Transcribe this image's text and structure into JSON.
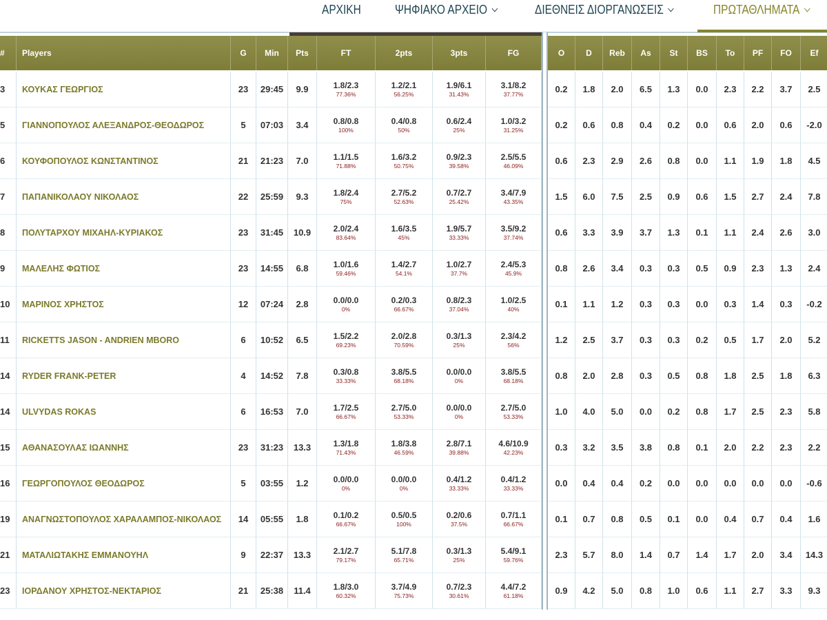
{
  "nav": {
    "items": [
      "ΑΡΧΙΚΗ",
      "ΨΗΦΙΑΚΟ ΑΡΧΕΙΟ",
      "ΔΙΕΘΝΕΙΣ ΔΙΟΡΓΑΝΩΣΕΙΣ",
      "ΠΡΩΤΑΘΛΗΜΑΤΑ"
    ]
  },
  "table": {
    "header": [
      "#",
      "Players",
      "G",
      "Min",
      "Pts",
      "FT",
      "2pts",
      "3pts",
      "FG",
      "O",
      "D",
      "Reb",
      "As",
      "St",
      "BS",
      "To",
      "PF",
      "FO",
      "Ef"
    ],
    "rows": [
      [
        "3",
        "ΚΟΥΚΑΣ ΓΕΩΡΓΙΟΣ",
        "23",
        "29:45",
        "9.9",
        [
          "1.8/2.3",
          "77.36%"
        ],
        [
          "1.2/2.1",
          "56.25%"
        ],
        [
          "1.9/6.1",
          "31.43%"
        ],
        [
          "3.1/8.2",
          "37.77%"
        ],
        "0.2",
        "1.8",
        "2.0",
        "6.5",
        "1.3",
        "0.0",
        "2.3",
        "2.2",
        "3.7",
        "2.5"
      ],
      [
        "5",
        "ΓΙΑΝΝΟΠΟΥΛΟΣ ΑΛΕΞΑΝΔΡΟΣ-ΘΕΟΔΩΡΟΣ",
        "5",
        "07:03",
        "3.4",
        [
          "0.8/0.8",
          "100%"
        ],
        [
          "0.4/0.8",
          "50%"
        ],
        [
          "0.6/2.4",
          "25%"
        ],
        [
          "1.0/3.2",
          "31.25%"
        ],
        "0.2",
        "0.6",
        "0.8",
        "0.4",
        "0.2",
        "0.0",
        "0.6",
        "2.0",
        "0.6",
        "-2.0"
      ],
      [
        "6",
        "ΚΟΥΦΟΠΟΥΛΟΣ ΚΩΝΣΤΑΝΤΙΝΟΣ",
        "21",
        "21:23",
        "7.0",
        [
          "1.1/1.5",
          "71.88%"
        ],
        [
          "1.6/3.2",
          "50.75%"
        ],
        [
          "0.9/2.3",
          "39.58%"
        ],
        [
          "2.5/5.5",
          "46.09%"
        ],
        "0.6",
        "2.3",
        "2.9",
        "2.6",
        "0.8",
        "0.0",
        "1.1",
        "1.9",
        "1.8",
        "4.5"
      ],
      [
        "7",
        "ΠΑΠΑΝΙΚΟΛΑΟΥ ΝΙΚΟΛΑΟΣ",
        "22",
        "25:59",
        "9.3",
        [
          "1.8/2.4",
          "75%"
        ],
        [
          "2.7/5.2",
          "52.63%"
        ],
        [
          "0.7/2.7",
          "25.42%"
        ],
        [
          "3.4/7.9",
          "43.35%"
        ],
        "1.5",
        "6.0",
        "7.5",
        "2.5",
        "0.9",
        "0.6",
        "1.5",
        "2.7",
        "2.4",
        "7.8"
      ],
      [
        "8",
        "ΠΟΛΥΤΑΡΧΟΥ ΜΙΧΑΗΛ-ΚΥΡΙΑΚΟΣ",
        "23",
        "31:45",
        "10.9",
        [
          "2.0/2.4",
          "83.64%"
        ],
        [
          "1.6/3.5",
          "45%"
        ],
        [
          "1.9/5.7",
          "33.33%"
        ],
        [
          "3.5/9.2",
          "37.74%"
        ],
        "0.6",
        "3.3",
        "3.9",
        "3.7",
        "1.3",
        "0.1",
        "1.1",
        "2.4",
        "2.6",
        "3.0"
      ],
      [
        "9",
        "ΜΑΛΕΛΗΣ ΦΩΤΙΟΣ",
        "23",
        "14:55",
        "6.8",
        [
          "1.0/1.6",
          "59.46%"
        ],
        [
          "1.4/2.7",
          "54.1%"
        ],
        [
          "1.0/2.7",
          "37.7%"
        ],
        [
          "2.4/5.3",
          "45.9%"
        ],
        "0.8",
        "2.6",
        "3.4",
        "0.3",
        "0.3",
        "0.5",
        "0.9",
        "2.3",
        "1.3",
        "2.4"
      ],
      [
        "10",
        "ΜΑΡΙΝΟΣ ΧΡΗΣΤΟΣ",
        "12",
        "07:24",
        "2.8",
        [
          "0.0/0.0",
          "0%"
        ],
        [
          "0.2/0.3",
          "66.67%"
        ],
        [
          "0.8/2.3",
          "37.04%"
        ],
        [
          "1.0/2.5",
          "40%"
        ],
        "0.1",
        "1.1",
        "1.2",
        "0.3",
        "0.3",
        "0.0",
        "0.3",
        "1.4",
        "0.3",
        "-0.2"
      ],
      [
        "11",
        "RICKETTS JASON - ANDRIEN MBORO",
        "6",
        "10:52",
        "6.5",
        [
          "1.5/2.2",
          "69.23%"
        ],
        [
          "2.0/2.8",
          "70.59%"
        ],
        [
          "0.3/1.3",
          "25%"
        ],
        [
          "2.3/4.2",
          "56%"
        ],
        "1.2",
        "2.5",
        "3.7",
        "0.3",
        "0.3",
        "0.2",
        "0.5",
        "1.7",
        "2.0",
        "5.2"
      ],
      [
        "14",
        "RYDER FRANK-PETER",
        "4",
        "14:52",
        "7.8",
        [
          "0.3/0.8",
          "33.33%"
        ],
        [
          "3.8/5.5",
          "68.18%"
        ],
        [
          "0.0/0.0",
          "0%"
        ],
        [
          "3.8/5.5",
          "68.18%"
        ],
        "0.8",
        "2.0",
        "2.8",
        "0.3",
        "0.5",
        "0.8",
        "1.8",
        "2.5",
        "1.8",
        "6.3"
      ],
      [
        "14",
        "ULVYDAS ROKAS",
        "6",
        "16:53",
        "7.0",
        [
          "1.7/2.5",
          "66.67%"
        ],
        [
          "2.7/5.0",
          "53.33%"
        ],
        [
          "0.0/0.0",
          "0%"
        ],
        [
          "2.7/5.0",
          "53.33%"
        ],
        "1.0",
        "4.0",
        "5.0",
        "0.0",
        "0.2",
        "0.8",
        "1.7",
        "2.5",
        "2.3",
        "5.8"
      ],
      [
        "15",
        "ΑΘΑΝΑΣΟΥΛΑΣ ΙΩΑΝΝΗΣ",
        "23",
        "31:23",
        "13.3",
        [
          "1.3/1.8",
          "71.43%"
        ],
        [
          "1.8/3.8",
          "46.59%"
        ],
        [
          "2.8/7.1",
          "39.88%"
        ],
        [
          "4.6/10.9",
          "42.23%"
        ],
        "0.3",
        "3.2",
        "3.5",
        "3.8",
        "0.8",
        "0.1",
        "2.0",
        "2.2",
        "2.3",
        "2.2"
      ],
      [
        "16",
        "ΓΕΩΡΓΟΠΟΥΛΟΣ ΘΕΟΔΩΡΟΣ",
        "5",
        "03:55",
        "1.2",
        [
          "0.0/0.0",
          "0%"
        ],
        [
          "0.0/0.0",
          "0%"
        ],
        [
          "0.4/1.2",
          "33.33%"
        ],
        [
          "0.4/1.2",
          "33.33%"
        ],
        "0.0",
        "0.4",
        "0.4",
        "0.2",
        "0.0",
        "0.0",
        "0.0",
        "0.0",
        "0.0",
        "-0.6"
      ],
      [
        "19",
        "ΑΝΑΓΝΩΣΤΟΠΟΥΛΟΣ ΧΑΡΑΛΑΜΠΟΣ-ΝΙΚΟΛΑΟΣ",
        "14",
        "05:55",
        "1.8",
        [
          "0.1/0.2",
          "66.67%"
        ],
        [
          "0.5/0.5",
          "100%"
        ],
        [
          "0.2/0.6",
          "37.5%"
        ],
        [
          "0.7/1.1",
          "66.67%"
        ],
        "0.1",
        "0.7",
        "0.8",
        "0.5",
        "0.1",
        "0.0",
        "0.4",
        "0.7",
        "0.4",
        "1.6"
      ],
      [
        "21",
        "ΜΑΤΑΛΙΩΤΑΚΗΣ ΕΜΜΑΝΟΥΗΛ",
        "9",
        "22:37",
        "13.3",
        [
          "2.1/2.7",
          "79.17%"
        ],
        [
          "5.1/7.8",
          "65.71%"
        ],
        [
          "0.3/1.3",
          "25%"
        ],
        [
          "5.4/9.1",
          "59.76%"
        ],
        "2.3",
        "5.7",
        "8.0",
        "1.4",
        "0.7",
        "1.4",
        "1.7",
        "2.0",
        "3.4",
        "14.3"
      ],
      [
        "23",
        "ΙΟΡΔΑΝΟΥ ΧΡΗΣΤΟΣ-ΝΕΚΤΑΡΙΟΣ",
        "21",
        "25:38",
        "11.4",
        [
          "1.8/3.0",
          "60.32%"
        ],
        [
          "3.7/4.9",
          "75.73%"
        ],
        [
          "0.7/2.3",
          "30.61%"
        ],
        [
          "4.4/7.2",
          "61.18%"
        ],
        "0.9",
        "4.2",
        "5.0",
        "0.8",
        "1.0",
        "0.6",
        "1.1",
        "2.7",
        "3.3",
        "9.3"
      ]
    ]
  }
}
